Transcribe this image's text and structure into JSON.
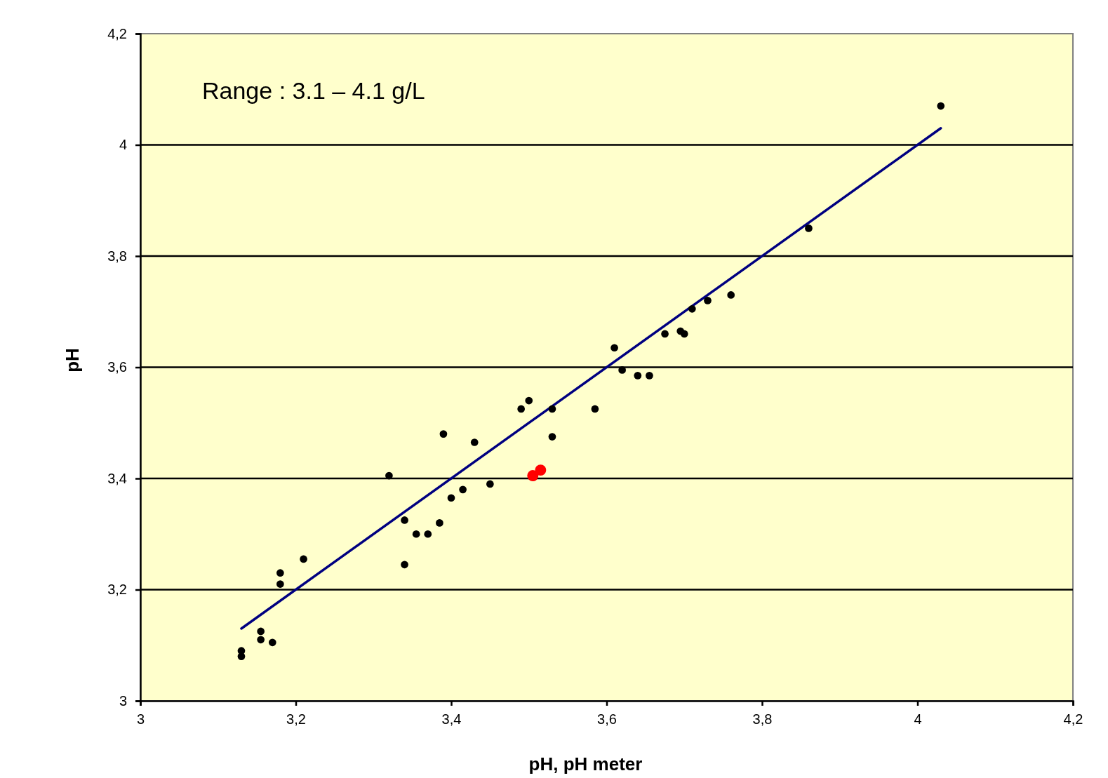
{
  "chart_data": {
    "type": "scatter",
    "xlabel": "pH, pH meter",
    "ylabel": "pH",
    "annotations": [
      "Range : 3.1 – 4.1 g/L"
    ],
    "xlim": [
      3,
      4.2
    ],
    "ylim": [
      3,
      4.2
    ],
    "xticks": [
      3,
      {
        "value": 3.2,
        "label": "3,2"
      },
      {
        "value": 3.4,
        "label": "3,4"
      },
      {
        "value": 3.6,
        "label": "3,6"
      },
      {
        "value": 3.8,
        "label": "3,8"
      },
      4,
      {
        "value": 4.2,
        "label": "4,2"
      }
    ],
    "yticks": [
      3,
      {
        "value": 3.2,
        "label": "3,2"
      },
      {
        "value": 3.4,
        "label": "3,4"
      },
      {
        "value": 3.6,
        "label": "3,6"
      },
      {
        "value": 3.8,
        "label": "3,8"
      },
      4,
      {
        "value": 4.2,
        "label": "4,2"
      }
    ],
    "grid": "y",
    "marker": "circle",
    "series": [
      {
        "color": "#000000",
        "x": [
          3.13,
          3.13,
          3.155,
          3.155,
          3.17,
          3.18,
          3.18,
          3.21,
          3.32,
          3.34,
          3.34,
          3.355,
          3.37,
          3.385,
          3.39,
          3.4,
          3.415,
          3.43,
          3.45,
          3.49,
          3.5,
          3.53,
          3.53,
          3.585,
          3.61,
          3.62,
          3.64,
          3.655,
          3.675,
          3.695,
          3.7,
          3.71,
          3.73,
          3.76,
          3.86,
          4.03
        ],
        "values": [
          3.08,
          3.09,
          3.11,
          3.125,
          3.105,
          3.21,
          3.23,
          3.255,
          3.405,
          3.245,
          3.325,
          3.3,
          3.3,
          3.32,
          3.48,
          3.365,
          3.38,
          3.465,
          3.39,
          3.525,
          3.54,
          3.525,
          3.475,
          3.525,
          3.635,
          3.595,
          3.585,
          3.585,
          3.66,
          3.665,
          3.66,
          3.705,
          3.72,
          3.73,
          3.85,
          4.07
        ]
      },
      {
        "color": "#ff0000",
        "x": [
          3.505,
          3.515
        ],
        "values": [
          3.405,
          3.415
        ]
      },
      {
        "type": "line",
        "marker": "none",
        "color": "#000080",
        "x": [
          3.13,
          4.03
        ],
        "values": [
          3.13,
          4.03
        ]
      }
    ]
  }
}
